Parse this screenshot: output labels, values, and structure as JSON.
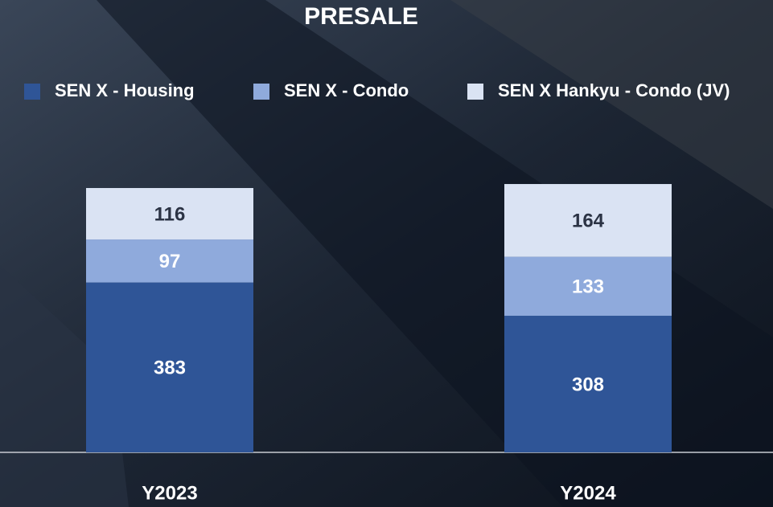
{
  "chart_data": {
    "type": "stacked-bar",
    "title": "PRESALE",
    "categories": [
      "Y2023",
      "Y2024"
    ],
    "series": [
      {
        "name": "SEN X - Housing",
        "color": "#2f5597",
        "values": [
          383,
          308
        ]
      },
      {
        "name": "SEN X - Condo",
        "color": "#8faadc",
        "values": [
          97,
          133
        ]
      },
      {
        "name": "SEN X Hankyu - Condo (JV)",
        "color": "#dae3f3",
        "values": [
          116,
          164
        ]
      }
    ]
  }
}
